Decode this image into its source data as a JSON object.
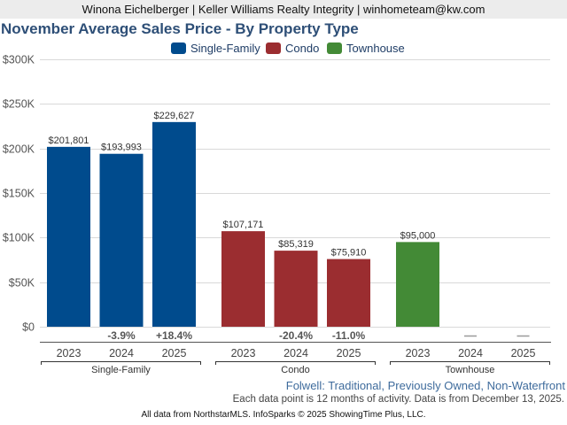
{
  "header": {
    "agent_line": "Winona Eichelberger | Keller Williams Realty Integrity | winhometeam@kw.com"
  },
  "chart_data": {
    "type": "bar",
    "title": "November Average Sales Price - By Property Type",
    "xlabel": "",
    "ylabel": "",
    "ylim": [
      0,
      300000
    ],
    "yticks": [
      0,
      50000,
      100000,
      150000,
      200000,
      250000,
      300000
    ],
    "ytick_labels": [
      "$0",
      "$50K",
      "$100K",
      "$150K",
      "$200K",
      "$250K",
      "$300K"
    ],
    "grid": true,
    "legend_position": "top-center",
    "categories": [
      "2023",
      "2024",
      "2025"
    ],
    "series": [
      {
        "name": "Single-Family",
        "color": "#004b8d",
        "values": [
          201801,
          193993,
          229627
        ],
        "value_labels": [
          "$201,801",
          "$193,993",
          "$229,627"
        ],
        "change_labels": [
          "",
          "-3.9%",
          "+18.4%"
        ]
      },
      {
        "name": "Condo",
        "color": "#9b2d30",
        "values": [
          107171,
          85319,
          75910
        ],
        "value_labels": [
          "$107,171",
          "$85,319",
          "$75,910"
        ],
        "change_labels": [
          "",
          "-20.4%",
          "-11.0%"
        ]
      },
      {
        "name": "Townhouse",
        "color": "#438a36",
        "values": [
          95000,
          null,
          null
        ],
        "value_labels": [
          "$95,000",
          "",
          ""
        ],
        "change_labels": [
          "",
          "—",
          "—"
        ]
      }
    ]
  },
  "subtitle": "Folwell: Traditional, Previously Owned, Non-Waterfront",
  "note": "Each data point is 12 months of activity. Data is from December 13, 2025.",
  "footer": "All data from NorthstarMLS. InfoSparks © 2025 ShowingTime Plus, LLC."
}
